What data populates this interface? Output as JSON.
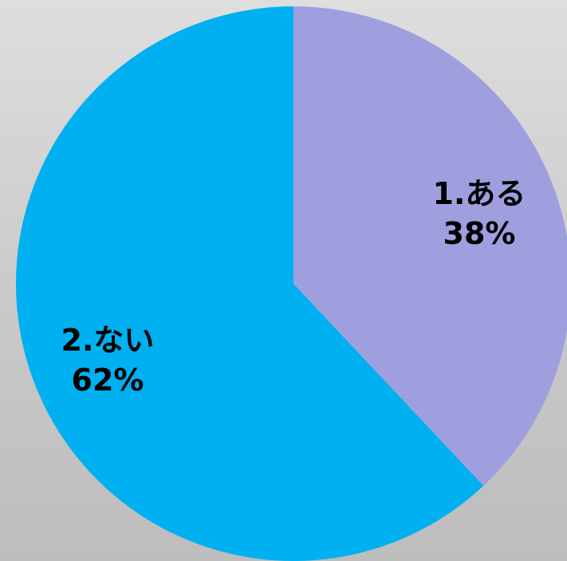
{
  "chart_data": {
    "type": "pie",
    "title": "",
    "slices": [
      {
        "label": "1.ある",
        "value": 38,
        "display": "38%",
        "color": "#9f9fe0"
      },
      {
        "label": "2.ない",
        "value": 62,
        "display": "62%",
        "color": "#00b0f0"
      }
    ],
    "start_direction": "top",
    "direction": "clockwise",
    "label_position": "inside"
  }
}
